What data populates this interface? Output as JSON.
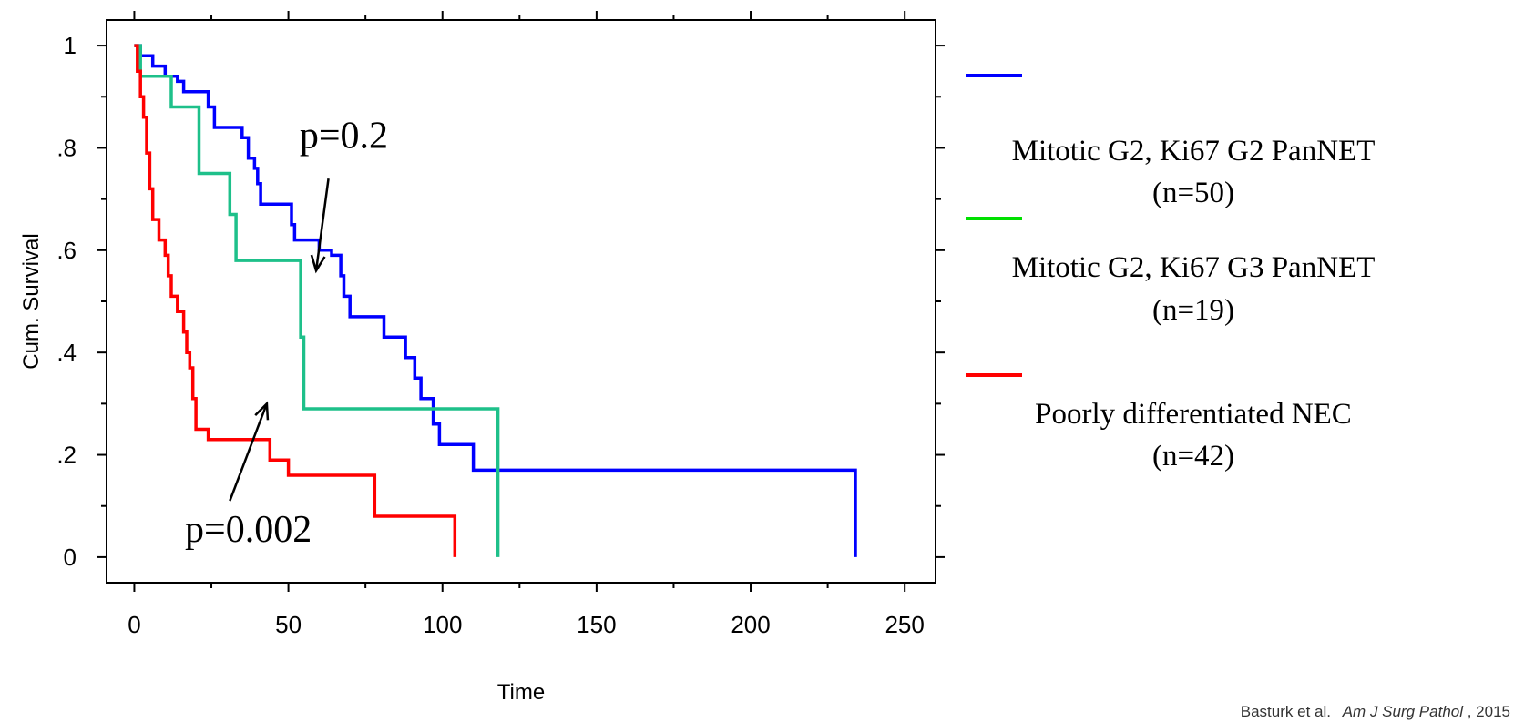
{
  "chart_data": {
    "type": "line",
    "step": true,
    "xlabel": "Time",
    "ylabel": "Cum. Survival",
    "xlim": [
      -9,
      260
    ],
    "ylim": [
      -0.05,
      1.05
    ],
    "x_ticks": [
      0,
      50,
      100,
      150,
      200,
      250
    ],
    "x_tick_labels": [
      "0",
      "50",
      "100",
      "150",
      "200",
      "250"
    ],
    "y_ticks": [
      0,
      0.2,
      0.4,
      0.6,
      0.8,
      1.0
    ],
    "y_tick_labels": [
      "0",
      ".2",
      ".4",
      ".6",
      ".8",
      "1"
    ],
    "grid": false,
    "legend_position": "right",
    "series": [
      {
        "name": "Mitotic G2, Ki67 G2 PanNET (n=50)",
        "label_line1": "Mitotic G2, Ki67 G2 PanNET",
        "label_line2": "(n=50)",
        "color": "#0000ff",
        "points": [
          [
            0,
            1.0
          ],
          [
            2,
            1.0
          ],
          [
            2,
            0.98
          ],
          [
            6,
            0.98
          ],
          [
            6,
            0.96
          ],
          [
            10,
            0.96
          ],
          [
            10,
            0.94
          ],
          [
            14,
            0.94
          ],
          [
            14,
            0.93
          ],
          [
            16,
            0.93
          ],
          [
            16,
            0.91
          ],
          [
            24,
            0.91
          ],
          [
            24,
            0.88
          ],
          [
            26,
            0.88
          ],
          [
            26,
            0.84
          ],
          [
            35,
            0.84
          ],
          [
            35,
            0.82
          ],
          [
            37,
            0.82
          ],
          [
            37,
            0.78
          ],
          [
            39,
            0.78
          ],
          [
            39,
            0.76
          ],
          [
            40,
            0.76
          ],
          [
            40,
            0.73
          ],
          [
            41,
            0.73
          ],
          [
            41,
            0.69
          ],
          [
            51,
            0.69
          ],
          [
            51,
            0.65
          ],
          [
            52,
            0.65
          ],
          [
            52,
            0.62
          ],
          [
            60,
            0.62
          ],
          [
            60,
            0.6
          ],
          [
            64,
            0.6
          ],
          [
            64,
            0.59
          ],
          [
            67,
            0.59
          ],
          [
            67,
            0.55
          ],
          [
            68,
            0.55
          ],
          [
            68,
            0.51
          ],
          [
            70,
            0.51
          ],
          [
            70,
            0.47
          ],
          [
            81,
            0.47
          ],
          [
            81,
            0.43
          ],
          [
            88,
            0.43
          ],
          [
            88,
            0.39
          ],
          [
            91,
            0.39
          ],
          [
            91,
            0.35
          ],
          [
            93,
            0.35
          ],
          [
            93,
            0.31
          ],
          [
            97,
            0.31
          ],
          [
            97,
            0.26
          ],
          [
            99,
            0.26
          ],
          [
            99,
            0.22
          ],
          [
            110,
            0.22
          ],
          [
            110,
            0.17
          ],
          [
            234,
            0.17
          ],
          [
            234,
            0.0
          ]
        ]
      },
      {
        "name": "Mitotic G2, Ki67 G3 PanNET (n=19)",
        "label_line1": "Mitotic G2, Ki67 G3 PanNET",
        "label_line2": "(n=19)",
        "color": "#1ec08a",
        "legend_color": "#00e000",
        "points": [
          [
            0,
            1.0
          ],
          [
            2,
            1.0
          ],
          [
            2,
            0.94
          ],
          [
            12,
            0.94
          ],
          [
            12,
            0.88
          ],
          [
            21,
            0.88
          ],
          [
            21,
            0.75
          ],
          [
            31,
            0.75
          ],
          [
            31,
            0.67
          ],
          [
            33,
            0.67
          ],
          [
            33,
            0.58
          ],
          [
            54,
            0.58
          ],
          [
            54,
            0.43
          ],
          [
            55,
            0.43
          ],
          [
            55,
            0.29
          ],
          [
            118,
            0.29
          ],
          [
            118,
            0.0
          ]
        ]
      },
      {
        "name": "Poorly differentiated NEC (n=42)",
        "label_line1": "Poorly differentiated NEC",
        "label_line2": "(n=42)",
        "color": "#ff0000",
        "points": [
          [
            0,
            1.0
          ],
          [
            1,
            1.0
          ],
          [
            1,
            0.95
          ],
          [
            2,
            0.95
          ],
          [
            2,
            0.9
          ],
          [
            3,
            0.9
          ],
          [
            3,
            0.86
          ],
          [
            4,
            0.86
          ],
          [
            4,
            0.79
          ],
          [
            5,
            0.79
          ],
          [
            5,
            0.72
          ],
          [
            6,
            0.72
          ],
          [
            6,
            0.66
          ],
          [
            8,
            0.66
          ],
          [
            8,
            0.62
          ],
          [
            10,
            0.62
          ],
          [
            10,
            0.59
          ],
          [
            11,
            0.59
          ],
          [
            11,
            0.55
          ],
          [
            12,
            0.55
          ],
          [
            12,
            0.51
          ],
          [
            14,
            0.51
          ],
          [
            14,
            0.48
          ],
          [
            16,
            0.48
          ],
          [
            16,
            0.44
          ],
          [
            17,
            0.44
          ],
          [
            17,
            0.4
          ],
          [
            18,
            0.4
          ],
          [
            18,
            0.37
          ],
          [
            19,
            0.37
          ],
          [
            19,
            0.31
          ],
          [
            20,
            0.31
          ],
          [
            20,
            0.25
          ],
          [
            24,
            0.25
          ],
          [
            24,
            0.23
          ],
          [
            44,
            0.23
          ],
          [
            44,
            0.19
          ],
          [
            50,
            0.19
          ],
          [
            50,
            0.16
          ],
          [
            78,
            0.16
          ],
          [
            78,
            0.08
          ],
          [
            104,
            0.08
          ],
          [
            104,
            0.0
          ]
        ]
      }
    ],
    "annotations": [
      {
        "text": "p=0.2",
        "x": 68,
        "y": 0.8,
        "arrow_from": [
          63,
          0.74
        ],
        "arrow_to": [
          59,
          0.56
        ]
      },
      {
        "text": "p=0.002",
        "x": 37,
        "y": 0.03,
        "arrow_from": [
          31,
          0.11
        ],
        "arrow_to": [
          43,
          0.3
        ]
      }
    ]
  },
  "citation": {
    "authors": "Basturk et al.",
    "journal": "Am J Surg Pathol",
    "year": ", 2015"
  }
}
